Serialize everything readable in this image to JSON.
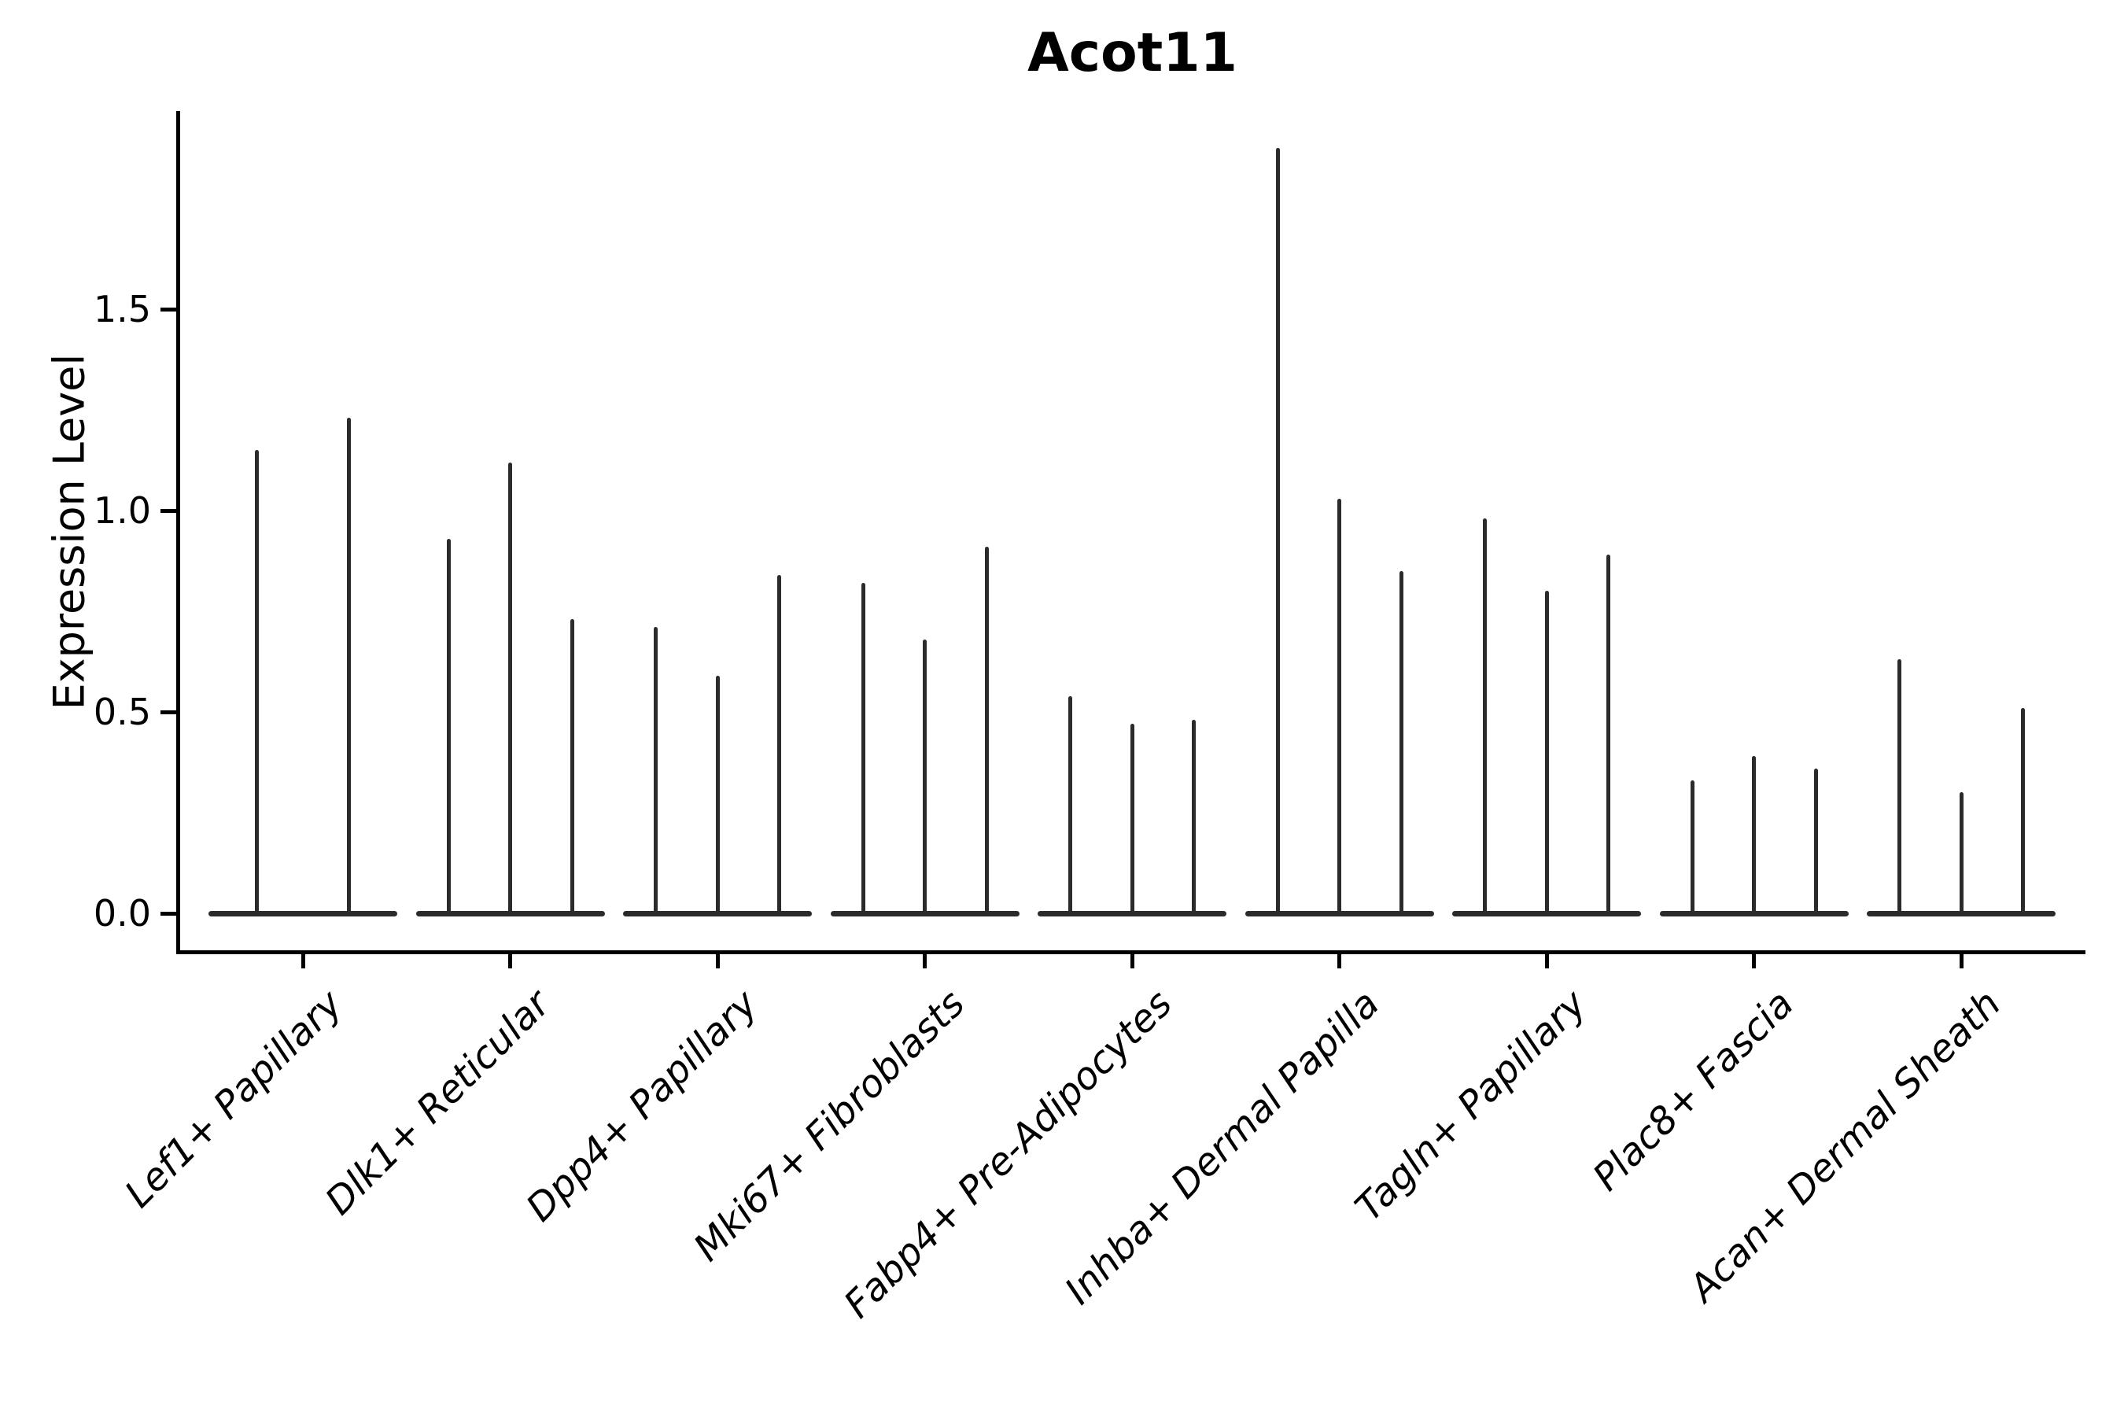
{
  "chart_data": {
    "type": "violin",
    "title": "Acot11",
    "ylabel": "Expression Level",
    "xlabel": "",
    "ylim": [
      -0.06,
      1.99
    ],
    "yticks": [
      0.0,
      0.5,
      1.0,
      1.5
    ],
    "ytick_labels": [
      "0.0",
      "0.5",
      "1.0",
      "1.5"
    ],
    "grid": false,
    "legend_position": "none",
    "x_tick_label_rotation": 45,
    "violin_color": "#2b2b2b",
    "axis_color": "#000000",
    "background_color": "#ffffff",
    "categories": [
      "Lef1+ Papillary",
      "Dlk1+ Reticular",
      "Dpp4+ Papillary",
      "Mki67+ Fibroblasts",
      "Fabp4+ Pre-Adipocytes",
      "Inhba+ Dermal Papilla",
      "Tagln+ Papillary",
      "Plac8+ Fascia",
      "Acan+ Dermal Sheath"
    ],
    "series": [
      {
        "category": "Lef1+ Papillary",
        "violin_max_expression": [
          1.15,
          1.23
        ]
      },
      {
        "category": "Dlk1+ Reticular",
        "violin_max_expression": [
          0.93,
          1.12,
          0.73
        ]
      },
      {
        "category": "Dpp4+ Papillary",
        "violin_max_expression": [
          0.71,
          0.59,
          0.84
        ]
      },
      {
        "category": "Mki67+ Fibroblasts",
        "violin_max_expression": [
          0.82,
          0.68,
          0.91
        ]
      },
      {
        "category": "Fabp4+ Pre-Adipocytes",
        "violin_max_expression": [
          0.54,
          0.47,
          0.48
        ]
      },
      {
        "category": "Inhba+ Dermal Papilla",
        "violin_max_expression": [
          1.9,
          1.03,
          0.85
        ]
      },
      {
        "category": "Tagln+ Papillary",
        "violin_max_expression": [
          0.98,
          0.8,
          0.89
        ]
      },
      {
        "category": "Plac8+ Fascia",
        "violin_max_expression": [
          0.33,
          0.39,
          0.36
        ]
      },
      {
        "category": "Acan+ Dermal Sheath",
        "violin_max_expression": [
          0.63,
          0.3,
          0.51
        ]
      }
    ]
  }
}
